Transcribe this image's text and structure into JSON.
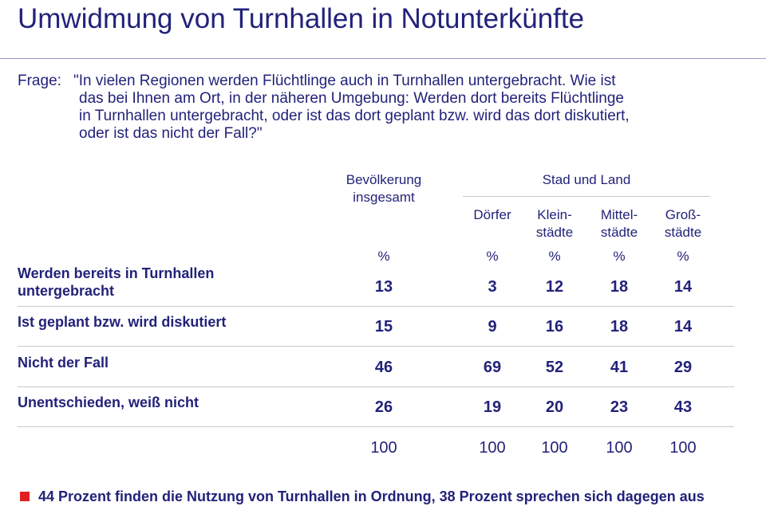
{
  "title": "Umwidmung von Turnhallen in Notunterkünfte",
  "question": {
    "label": "Frage:",
    "lines": [
      "\"In vielen Regionen werden Flüchtlinge auch in Turnhallen untergebracht. Wie ist",
      "das bei Ihnen am Ort, in der näheren Umgebung: Werden dort bereits Flüchtlinge",
      "in Turnhallen untergebracht, oder ist das dort geplant bzw. wird das dort diskutiert,",
      "oder ist das nicht der Fall?\""
    ]
  },
  "table": {
    "group_header": "Stad und Land",
    "columns": [
      [
        "Bevölkerung",
        "insgesamt"
      ],
      [
        "Dörfer"
      ],
      [
        "Klein-",
        "städte"
      ],
      [
        "Mittel-",
        "städte"
      ],
      [
        "Groß-",
        "städte"
      ]
    ],
    "units": [
      "%",
      "%",
      "%",
      "%",
      "%"
    ],
    "rows": [
      {
        "label": [
          "Werden bereits in Turnhallen",
          "untergebracht"
        ],
        "values": [
          13,
          3,
          12,
          18,
          14
        ]
      },
      {
        "label": [
          "Ist geplant bzw. wird diskutiert"
        ],
        "values": [
          15,
          9,
          16,
          18,
          14
        ]
      },
      {
        "label": [
          "Nicht der Fall"
        ],
        "values": [
          46,
          69,
          52,
          41,
          29
        ]
      },
      {
        "label": [
          "Unentschieden, weiß nicht"
        ],
        "values": [
          26,
          19,
          20,
          23,
          43
        ]
      }
    ],
    "totals": [
      100,
      100,
      100,
      100,
      100
    ]
  },
  "footer": "44 Prozent finden die Nutzung von Turnhallen in Ordnung, 38 Prozent sprechen sich dagegen aus"
}
